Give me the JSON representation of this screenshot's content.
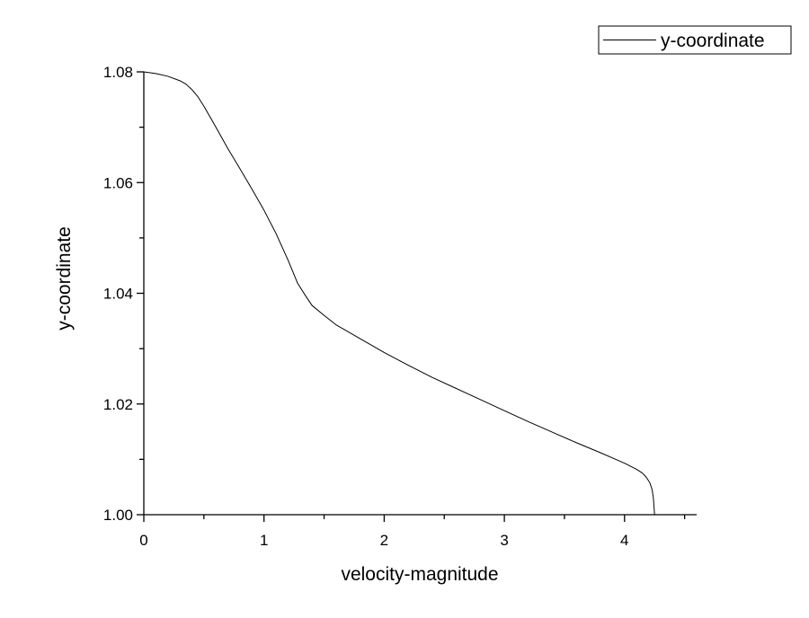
{
  "chart_data": {
    "type": "line",
    "xlabel": "velocity-magnitude",
    "ylabel": "y-coordinate",
    "xlim": [
      0,
      4.6
    ],
    "ylim": [
      1.0,
      1.08
    ],
    "x_ticks": [
      "0",
      "1",
      "2",
      "3",
      "4"
    ],
    "y_ticks": [
      "1.00",
      "1.02",
      "1.04",
      "1.06",
      "1.08"
    ],
    "grid": false,
    "legend": "top-right",
    "series": [
      {
        "name": "y-coordinate",
        "color": "#000000",
        "points": [
          [
            0.0,
            1.08
          ],
          [
            0.1,
            1.0797
          ],
          [
            0.2,
            1.0792
          ],
          [
            0.3,
            1.0784
          ],
          [
            0.35,
            1.0778
          ],
          [
            0.4,
            1.0768
          ],
          [
            0.45,
            1.0755
          ],
          [
            0.5,
            1.0738
          ],
          [
            0.55,
            1.0719
          ],
          [
            0.6,
            1.07
          ],
          [
            0.7,
            1.0661
          ],
          [
            0.8,
            1.0625
          ],
          [
            0.9,
            1.0588
          ],
          [
            1.0,
            1.055
          ],
          [
            1.1,
            1.0508
          ],
          [
            1.2,
            1.046
          ],
          [
            1.28,
            1.0418
          ],
          [
            1.35,
            1.0394
          ],
          [
            1.4,
            1.0378
          ],
          [
            1.5,
            1.036
          ],
          [
            1.6,
            1.0343
          ],
          [
            1.8,
            1.0318
          ],
          [
            2.0,
            1.0293
          ],
          [
            2.2,
            1.027
          ],
          [
            2.4,
            1.0248
          ],
          [
            2.6,
            1.0228
          ],
          [
            2.8,
            1.0208
          ],
          [
            3.0,
            1.0188
          ],
          [
            3.2,
            1.0168
          ],
          [
            3.4,
            1.0149
          ],
          [
            3.6,
            1.013
          ],
          [
            3.8,
            1.0112
          ],
          [
            4.0,
            1.0093
          ],
          [
            4.1,
            1.0082
          ],
          [
            4.15,
            1.0075
          ],
          [
            4.18,
            1.0068
          ],
          [
            4.21,
            1.0058
          ],
          [
            4.23,
            1.0045
          ],
          [
            4.24,
            1.003
          ],
          [
            4.245,
            1.0015
          ],
          [
            4.25,
            1.0
          ]
        ]
      }
    ]
  }
}
